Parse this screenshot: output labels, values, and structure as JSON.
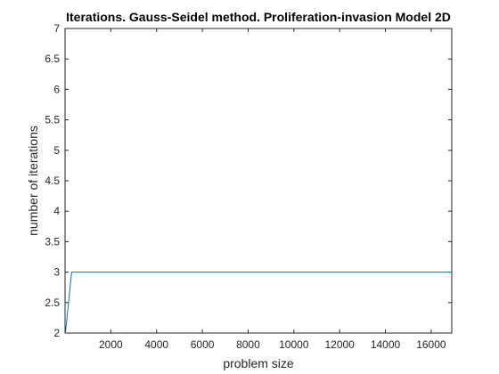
{
  "chart_data": {
    "type": "line",
    "title": "Iterations. Gauss-Seidel method. Proliferation-invasion Model 2D",
    "xlabel": "problem size",
    "ylabel": "number of iterations",
    "xlim": [
      0,
      16900
    ],
    "ylim": [
      2,
      7
    ],
    "xticks": [
      2000,
      4000,
      6000,
      8000,
      10000,
      12000,
      14000,
      16000
    ],
    "yticks": [
      2,
      2.5,
      3,
      3.5,
      4,
      4.5,
      5,
      5.5,
      6,
      6.5,
      7
    ],
    "xtick_labels": [
      "2000",
      "4000",
      "6000",
      "8000",
      "10000",
      "12000",
      "14000",
      "16000"
    ],
    "ytick_labels": [
      "2",
      "2.5",
      "3",
      "3.5",
      "4",
      "4.5",
      "5",
      "5.5",
      "6",
      "6.5",
      "7"
    ],
    "grid": false,
    "series": [
      {
        "color": "#0072BD",
        "x": [
          16,
          289,
          1024,
          4096,
          16384,
          16900
        ],
        "y": [
          2,
          3,
          3,
          3,
          3,
          3
        ]
      }
    ]
  }
}
